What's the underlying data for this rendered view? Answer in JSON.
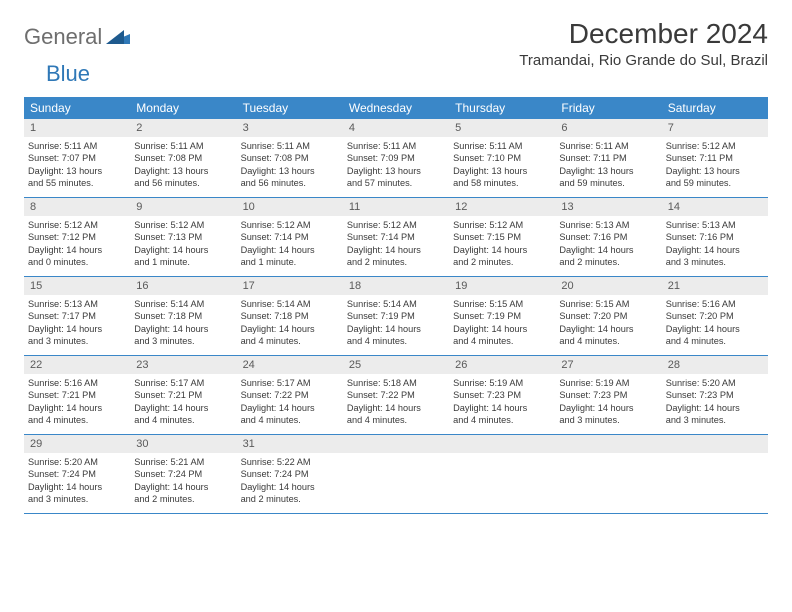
{
  "logo": {
    "text1": "General",
    "text2": "Blue"
  },
  "header": {
    "month_title": "December 2024",
    "location": "Tramandai, Rio Grande do Sul, Brazil"
  },
  "colors": {
    "header_bg": "#3a87c8",
    "daynum_bg": "#ececec",
    "text": "#3a3a3a",
    "logo_gray": "#6e6e6e",
    "logo_blue": "#2f78b7"
  },
  "weekdays": [
    "Sunday",
    "Monday",
    "Tuesday",
    "Wednesday",
    "Thursday",
    "Friday",
    "Saturday"
  ],
  "days": [
    {
      "num": "1",
      "sunrise": "Sunrise: 5:11 AM",
      "sunset": "Sunset: 7:07 PM",
      "daylight1": "Daylight: 13 hours",
      "daylight2": "and 55 minutes."
    },
    {
      "num": "2",
      "sunrise": "Sunrise: 5:11 AM",
      "sunset": "Sunset: 7:08 PM",
      "daylight1": "Daylight: 13 hours",
      "daylight2": "and 56 minutes."
    },
    {
      "num": "3",
      "sunrise": "Sunrise: 5:11 AM",
      "sunset": "Sunset: 7:08 PM",
      "daylight1": "Daylight: 13 hours",
      "daylight2": "and 56 minutes."
    },
    {
      "num": "4",
      "sunrise": "Sunrise: 5:11 AM",
      "sunset": "Sunset: 7:09 PM",
      "daylight1": "Daylight: 13 hours",
      "daylight2": "and 57 minutes."
    },
    {
      "num": "5",
      "sunrise": "Sunrise: 5:11 AM",
      "sunset": "Sunset: 7:10 PM",
      "daylight1": "Daylight: 13 hours",
      "daylight2": "and 58 minutes."
    },
    {
      "num": "6",
      "sunrise": "Sunrise: 5:11 AM",
      "sunset": "Sunset: 7:11 PM",
      "daylight1": "Daylight: 13 hours",
      "daylight2": "and 59 minutes."
    },
    {
      "num": "7",
      "sunrise": "Sunrise: 5:12 AM",
      "sunset": "Sunset: 7:11 PM",
      "daylight1": "Daylight: 13 hours",
      "daylight2": "and 59 minutes."
    },
    {
      "num": "8",
      "sunrise": "Sunrise: 5:12 AM",
      "sunset": "Sunset: 7:12 PM",
      "daylight1": "Daylight: 14 hours",
      "daylight2": "and 0 minutes."
    },
    {
      "num": "9",
      "sunrise": "Sunrise: 5:12 AM",
      "sunset": "Sunset: 7:13 PM",
      "daylight1": "Daylight: 14 hours",
      "daylight2": "and 1 minute."
    },
    {
      "num": "10",
      "sunrise": "Sunrise: 5:12 AM",
      "sunset": "Sunset: 7:14 PM",
      "daylight1": "Daylight: 14 hours",
      "daylight2": "and 1 minute."
    },
    {
      "num": "11",
      "sunrise": "Sunrise: 5:12 AM",
      "sunset": "Sunset: 7:14 PM",
      "daylight1": "Daylight: 14 hours",
      "daylight2": "and 2 minutes."
    },
    {
      "num": "12",
      "sunrise": "Sunrise: 5:12 AM",
      "sunset": "Sunset: 7:15 PM",
      "daylight1": "Daylight: 14 hours",
      "daylight2": "and 2 minutes."
    },
    {
      "num": "13",
      "sunrise": "Sunrise: 5:13 AM",
      "sunset": "Sunset: 7:16 PM",
      "daylight1": "Daylight: 14 hours",
      "daylight2": "and 2 minutes."
    },
    {
      "num": "14",
      "sunrise": "Sunrise: 5:13 AM",
      "sunset": "Sunset: 7:16 PM",
      "daylight1": "Daylight: 14 hours",
      "daylight2": "and 3 minutes."
    },
    {
      "num": "15",
      "sunrise": "Sunrise: 5:13 AM",
      "sunset": "Sunset: 7:17 PM",
      "daylight1": "Daylight: 14 hours",
      "daylight2": "and 3 minutes."
    },
    {
      "num": "16",
      "sunrise": "Sunrise: 5:14 AM",
      "sunset": "Sunset: 7:18 PM",
      "daylight1": "Daylight: 14 hours",
      "daylight2": "and 3 minutes."
    },
    {
      "num": "17",
      "sunrise": "Sunrise: 5:14 AM",
      "sunset": "Sunset: 7:18 PM",
      "daylight1": "Daylight: 14 hours",
      "daylight2": "and 4 minutes."
    },
    {
      "num": "18",
      "sunrise": "Sunrise: 5:14 AM",
      "sunset": "Sunset: 7:19 PM",
      "daylight1": "Daylight: 14 hours",
      "daylight2": "and 4 minutes."
    },
    {
      "num": "19",
      "sunrise": "Sunrise: 5:15 AM",
      "sunset": "Sunset: 7:19 PM",
      "daylight1": "Daylight: 14 hours",
      "daylight2": "and 4 minutes."
    },
    {
      "num": "20",
      "sunrise": "Sunrise: 5:15 AM",
      "sunset": "Sunset: 7:20 PM",
      "daylight1": "Daylight: 14 hours",
      "daylight2": "and 4 minutes."
    },
    {
      "num": "21",
      "sunrise": "Sunrise: 5:16 AM",
      "sunset": "Sunset: 7:20 PM",
      "daylight1": "Daylight: 14 hours",
      "daylight2": "and 4 minutes."
    },
    {
      "num": "22",
      "sunrise": "Sunrise: 5:16 AM",
      "sunset": "Sunset: 7:21 PM",
      "daylight1": "Daylight: 14 hours",
      "daylight2": "and 4 minutes."
    },
    {
      "num": "23",
      "sunrise": "Sunrise: 5:17 AM",
      "sunset": "Sunset: 7:21 PM",
      "daylight1": "Daylight: 14 hours",
      "daylight2": "and 4 minutes."
    },
    {
      "num": "24",
      "sunrise": "Sunrise: 5:17 AM",
      "sunset": "Sunset: 7:22 PM",
      "daylight1": "Daylight: 14 hours",
      "daylight2": "and 4 minutes."
    },
    {
      "num": "25",
      "sunrise": "Sunrise: 5:18 AM",
      "sunset": "Sunset: 7:22 PM",
      "daylight1": "Daylight: 14 hours",
      "daylight2": "and 4 minutes."
    },
    {
      "num": "26",
      "sunrise": "Sunrise: 5:19 AM",
      "sunset": "Sunset: 7:23 PM",
      "daylight1": "Daylight: 14 hours",
      "daylight2": "and 4 minutes."
    },
    {
      "num": "27",
      "sunrise": "Sunrise: 5:19 AM",
      "sunset": "Sunset: 7:23 PM",
      "daylight1": "Daylight: 14 hours",
      "daylight2": "and 3 minutes."
    },
    {
      "num": "28",
      "sunrise": "Sunrise: 5:20 AM",
      "sunset": "Sunset: 7:23 PM",
      "daylight1": "Daylight: 14 hours",
      "daylight2": "and 3 minutes."
    },
    {
      "num": "29",
      "sunrise": "Sunrise: 5:20 AM",
      "sunset": "Sunset: 7:24 PM",
      "daylight1": "Daylight: 14 hours",
      "daylight2": "and 3 minutes."
    },
    {
      "num": "30",
      "sunrise": "Sunrise: 5:21 AM",
      "sunset": "Sunset: 7:24 PM",
      "daylight1": "Daylight: 14 hours",
      "daylight2": "and 2 minutes."
    },
    {
      "num": "31",
      "sunrise": "Sunrise: 5:22 AM",
      "sunset": "Sunset: 7:24 PM",
      "daylight1": "Daylight: 14 hours",
      "daylight2": "and 2 minutes."
    }
  ]
}
